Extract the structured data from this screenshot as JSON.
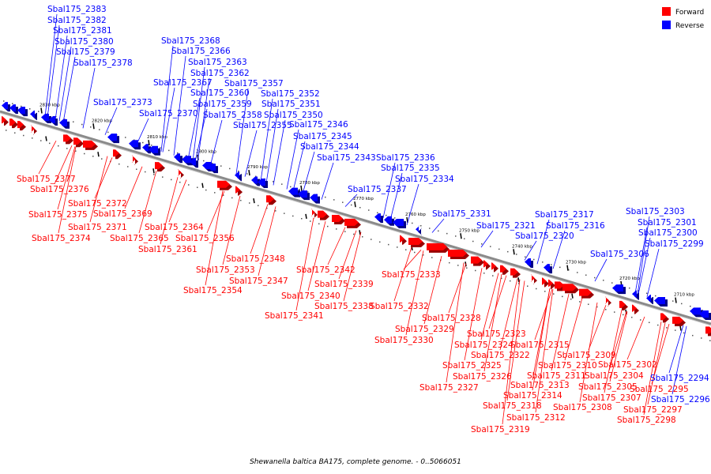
{
  "caption": "Shewanella baltica BA175, complete genome. - 0..5066051",
  "legend": [
    {
      "label": "Forward",
      "color": "#ff0000"
    },
    {
      "label": "Reverse",
      "color": "#0000ff"
    }
  ],
  "colors": {
    "forward": "#ff0000",
    "reverse": "#0000ff",
    "axis": "#808080"
  },
  "ticks": [
    "2830 kbp",
    "2820 kbp",
    "2810 kbp",
    "2800 kbp",
    "2790 kbp",
    "2780 kbp",
    "2770 kbp",
    "2760 kbp",
    "2750 kbp",
    "2740 kbp",
    "2730 kbp",
    "2720 kbp",
    "2710 kbp"
  ],
  "reverse_genes": [
    "Sbal175_2383",
    "Sbal175_2382",
    "Sbal175_2381",
    "Sbal175_2380",
    "Sbal175_2379",
    "Sbal175_2378",
    "Sbal175_2373",
    "Sbal175_2370",
    "Sbal175_2368",
    "Sbal175_2366",
    "Sbal175_2363",
    "Sbal175_2362",
    "Sbal175_2367",
    "Sbal175_2357",
    "Sbal175_2360",
    "Sbal175_2352",
    "Sbal175_2359",
    "Sbal175_2351",
    "Sbal175_2358",
    "Sbal175_2350",
    "Sbal175_2355",
    "Sbal175_2346",
    "Sbal175_2345",
    "Sbal175_2344",
    "Sbal175_2343",
    "Sbal175_2336",
    "Sbal175_2335",
    "Sbal175_2334",
    "Sbal175_2337",
    "Sbal175_2331",
    "Sbal175_2317",
    "Sbal175_2321",
    "Sbal175_2316",
    "Sbal175_2320",
    "Sbal175_2303",
    "Sbal175_2301",
    "Sbal175_2300",
    "Sbal175_2299",
    "Sbal175_2306",
    "Sbal175_2294",
    "Sbal175_2296"
  ],
  "forward_genes": [
    "Sbal175_2377",
    "Sbal175_2376",
    "Sbal175_2372",
    "Sbal175_2375",
    "Sbal175_2369",
    "Sbal175_2371",
    "Sbal175_2364",
    "Sbal175_2374",
    "Sbal175_2365",
    "Sbal175_2356",
    "Sbal175_2361",
    "Sbal175_2348",
    "Sbal175_2353",
    "Sbal175_2347",
    "Sbal175_2342",
    "Sbal175_2354",
    "Sbal175_2339",
    "Sbal175_2340",
    "Sbal175_2338",
    "Sbal175_2341",
    "Sbal175_2333",
    "Sbal175_2332",
    "Sbal175_2328",
    "Sbal175_2329",
    "Sbal175_2330",
    "Sbal175_2323",
    "Sbal175_2315",
    "Sbal175_2324",
    "Sbal175_2322",
    "Sbal175_2309",
    "Sbal175_2325",
    "Sbal175_2311",
    "Sbal175_2310",
    "Sbal175_2302",
    "Sbal175_2326",
    "Sbal175_2313",
    "Sbal175_2304",
    "Sbal175_2327",
    "Sbal175_2314",
    "Sbal175_2305",
    "Sbal175_2307",
    "Sbal175_2318",
    "Sbal175_2308",
    "Sbal175_2312",
    "Sbal175_2319",
    "Sbal175_2295",
    "Sbal175_2297",
    "Sbal175_2298"
  ]
}
